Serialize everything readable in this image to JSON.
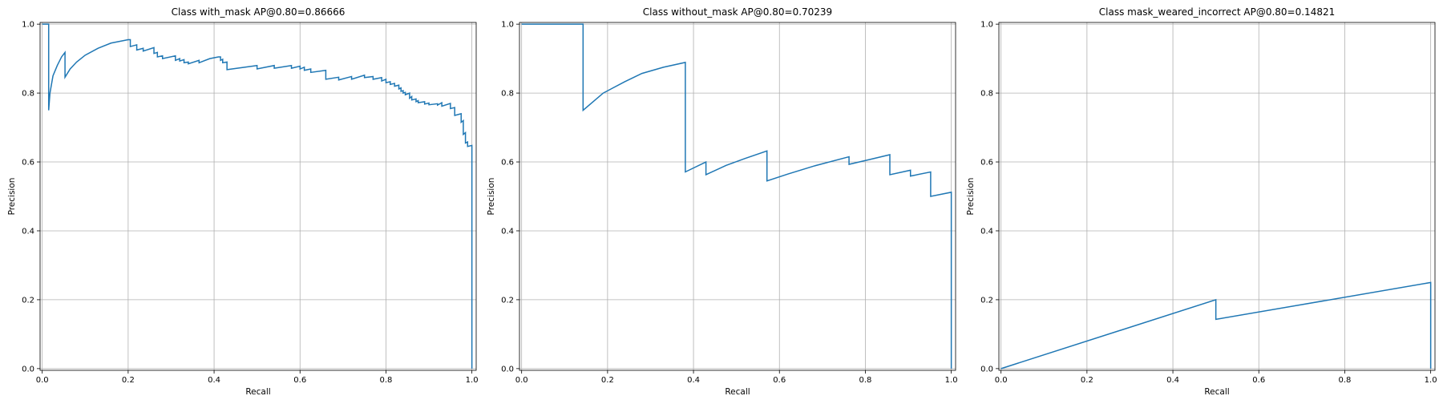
{
  "colors": {
    "series": "#1f77b4",
    "grid": "#b0b0b0"
  },
  "chart_data": [
    {
      "type": "line",
      "title": "Class with_mask AP@0.80=0.86666",
      "xlabel": "Recall",
      "ylabel": "Precision",
      "xlim": [
        -0.005,
        1.01
      ],
      "ylim": [
        -0.005,
        1.005
      ],
      "xticks": [
        "0.0",
        "0.2",
        "0.4",
        "0.6",
        "0.8",
        "1.0"
      ],
      "yticks": [
        "0.0",
        "0.2",
        "0.4",
        "0.6",
        "0.8",
        "1.0"
      ],
      "grid": true,
      "series": [
        {
          "x": [
            0.0,
            0.015,
            0.015,
            0.018,
            0.025,
            0.035,
            0.045,
            0.053,
            0.053,
            0.065,
            0.08,
            0.1,
            0.13,
            0.16,
            0.2,
            0.205,
            0.205,
            0.22,
            0.22,
            0.235,
            0.235,
            0.26,
            0.26,
            0.268,
            0.268,
            0.28,
            0.28,
            0.31,
            0.31,
            0.32,
            0.32,
            0.33,
            0.33,
            0.34,
            0.34,
            0.365,
            0.365,
            0.39,
            0.41,
            0.415,
            0.415,
            0.42,
            0.42,
            0.43,
            0.43,
            0.5,
            0.5,
            0.54,
            0.54,
            0.58,
            0.58,
            0.6,
            0.6,
            0.61,
            0.61,
            0.625,
            0.625,
            0.66,
            0.66,
            0.69,
            0.69,
            0.72,
            0.72,
            0.75,
            0.75,
            0.77,
            0.77,
            0.79,
            0.79,
            0.8,
            0.8,
            0.81,
            0.81,
            0.82,
            0.82,
            0.83,
            0.83,
            0.835,
            0.835,
            0.84,
            0.84,
            0.845,
            0.845,
            0.855,
            0.855,
            0.86,
            0.86,
            0.87,
            0.87,
            0.875,
            0.875,
            0.89,
            0.89,
            0.9,
            0.9,
            0.92,
            0.92,
            0.93,
            0.93,
            0.95,
            0.95,
            0.96,
            0.96,
            0.975,
            0.975,
            0.98,
            0.98,
            0.985,
            0.985,
            0.99,
            0.99,
            1.0,
            1.0
          ],
          "y": [
            1.0,
            1.0,
            0.75,
            0.8,
            0.85,
            0.88,
            0.905,
            0.918,
            0.846,
            0.87,
            0.89,
            0.91,
            0.93,
            0.945,
            0.955,
            0.955,
            0.935,
            0.94,
            0.925,
            0.93,
            0.922,
            0.932,
            0.915,
            0.918,
            0.905,
            0.908,
            0.9,
            0.908,
            0.895,
            0.9,
            0.893,
            0.897,
            0.888,
            0.89,
            0.885,
            0.895,
            0.888,
            0.9,
            0.905,
            0.905,
            0.895,
            0.898,
            0.888,
            0.89,
            0.868,
            0.88,
            0.87,
            0.88,
            0.872,
            0.88,
            0.872,
            0.878,
            0.87,
            0.875,
            0.866,
            0.87,
            0.86,
            0.866,
            0.84,
            0.846,
            0.838,
            0.848,
            0.84,
            0.852,
            0.845,
            0.848,
            0.84,
            0.845,
            0.835,
            0.84,
            0.83,
            0.833,
            0.825,
            0.828,
            0.82,
            0.823,
            0.812,
            0.815,
            0.805,
            0.807,
            0.8,
            0.802,
            0.795,
            0.8,
            0.785,
            0.79,
            0.78,
            0.783,
            0.775,
            0.778,
            0.772,
            0.775,
            0.768,
            0.771,
            0.766,
            0.769,
            0.765,
            0.772,
            0.762,
            0.77,
            0.755,
            0.758,
            0.735,
            0.74,
            0.715,
            0.72,
            0.68,
            0.685,
            0.655,
            0.658,
            0.645,
            0.648,
            0.0
          ]
        }
      ]
    },
    {
      "type": "line",
      "title": "Class without_mask AP@0.80=0.70239",
      "xlabel": "Recall",
      "ylabel": "Precision",
      "xlim": [
        -0.005,
        1.01
      ],
      "ylim": [
        -0.005,
        1.005
      ],
      "xticks": [
        "0.0",
        "0.2",
        "0.4",
        "0.6",
        "0.8",
        "1.0"
      ],
      "yticks": [
        "0.0",
        "0.2",
        "0.4",
        "0.6",
        "0.8",
        "1.0"
      ],
      "grid": true,
      "series": [
        {
          "x": [
            0.0,
            0.143,
            0.143,
            0.19,
            0.24,
            0.28,
            0.33,
            0.381,
            0.381,
            0.429,
            0.429,
            0.476,
            0.52,
            0.571,
            0.571,
            0.62,
            0.68,
            0.762,
            0.762,
            0.81,
            0.857,
            0.857,
            0.905,
            0.905,
            0.952,
            0.952,
            1.0,
            1.0
          ],
          "y": [
            1.0,
            1.0,
            0.75,
            0.8,
            0.833,
            0.857,
            0.875,
            0.889,
            0.571,
            0.6,
            0.563,
            0.59,
            0.61,
            0.632,
            0.545,
            0.565,
            0.588,
            0.615,
            0.593,
            0.607,
            0.621,
            0.563,
            0.576,
            0.559,
            0.571,
            0.5,
            0.512,
            0.0
          ]
        }
      ]
    },
    {
      "type": "line",
      "title": "Class mask_weared_incorrect AP@0.80=0.14821",
      "xlabel": "Recall",
      "ylabel": "Precision",
      "xlim": [
        -0.005,
        1.01
      ],
      "ylim": [
        -0.005,
        1.005
      ],
      "xticks": [
        "0.0",
        "0.2",
        "0.4",
        "0.6",
        "0.8",
        "1.0"
      ],
      "yticks": [
        "0.0",
        "0.2",
        "0.4",
        "0.6",
        "0.8",
        "1.0"
      ],
      "grid": true,
      "series": [
        {
          "x": [
            0.0,
            0.5,
            0.5,
            1.0,
            1.0
          ],
          "y": [
            0.0,
            0.2,
            0.143,
            0.25,
            0.0
          ]
        }
      ]
    }
  ]
}
